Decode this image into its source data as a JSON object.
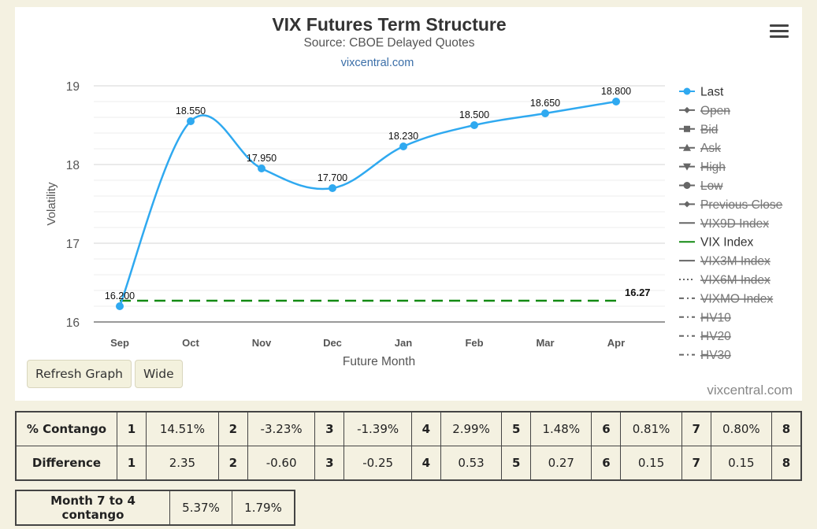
{
  "chart_data": {
    "type": "line",
    "title": "VIX Futures Term Structure",
    "subtitle": "Source: CBOE Delayed Quotes",
    "link_text": "vixcentral.com",
    "xlabel": "Future Month",
    "ylabel": "Volatility",
    "categories": [
      "Sep",
      "Oct",
      "Nov",
      "Dec",
      "Jan",
      "Feb",
      "Mar",
      "Apr"
    ],
    "ylim": [
      16,
      19
    ],
    "yticks": [
      16,
      17,
      18,
      19
    ],
    "grid": true,
    "legend_position": "right",
    "series": [
      {
        "name": "Last",
        "color": "#2fa9f0",
        "values": [
          16.2,
          18.55,
          17.95,
          17.7,
          18.23,
          18.5,
          18.65,
          18.8
        ],
        "labels": [
          "16.200",
          "18.550",
          "17.950",
          "17.700",
          "18.230",
          "18.500",
          "18.650",
          "18.800"
        ]
      },
      {
        "name": "VIX Index",
        "color": "#138a13",
        "values": [
          16.27,
          16.27,
          16.27,
          16.27,
          16.27,
          16.27,
          16.27,
          16.27
        ],
        "end_label": "16.27"
      }
    ],
    "legend": [
      {
        "name": "Last",
        "symbol": "circle-line",
        "active": true
      },
      {
        "name": "Open",
        "symbol": "diamond-line",
        "active": false
      },
      {
        "name": "Bid",
        "symbol": "square-line",
        "active": false
      },
      {
        "name": "Ask",
        "symbol": "triangle-line",
        "active": false
      },
      {
        "name": "High",
        "symbol": "triangle-down-line",
        "active": false
      },
      {
        "name": "Low",
        "symbol": "circle-line",
        "active": false
      },
      {
        "name": "Previous Close",
        "symbol": "diamond-line",
        "active": false
      },
      {
        "name": "VIX9D Index",
        "symbol": "solid",
        "active": false
      },
      {
        "name": "VIX Index",
        "symbol": "solid-green",
        "active": true
      },
      {
        "name": "VIX3M Index",
        "symbol": "solid",
        "active": false
      },
      {
        "name": "VIX6M Index",
        "symbol": "dotted",
        "active": false
      },
      {
        "name": "VIXMO Index",
        "symbol": "dashdot",
        "active": false
      },
      {
        "name": "HV10",
        "symbol": "dashdot",
        "active": false
      },
      {
        "name": "HV20",
        "symbol": "dashdot",
        "active": false
      },
      {
        "name": "HV30",
        "symbol": "dashdot",
        "active": false
      }
    ]
  },
  "toolbar": {
    "menu_icon": "hamburger-menu-icon",
    "refresh_label": "Refresh Graph",
    "wide_label": "Wide"
  },
  "credit": "vixcentral.com",
  "contango_table": {
    "rows": [
      {
        "label": "% Contango",
        "cells": [
          "1",
          "14.51%",
          "2",
          "-3.23%",
          "3",
          "-1.39%",
          "4",
          "2.99%",
          "5",
          "1.48%",
          "6",
          "0.81%",
          "7",
          "0.80%",
          "8"
        ]
      },
      {
        "label": "Difference",
        "cells": [
          "1",
          "2.35",
          "2",
          "-0.60",
          "3",
          "-0.25",
          "4",
          "0.53",
          "5",
          "0.27",
          "6",
          "0.15",
          "7",
          "0.15",
          "8"
        ]
      }
    ]
  },
  "month_7_to_4": {
    "label": "Month 7 to 4 contango",
    "values": [
      "5.37%",
      "1.79%"
    ]
  }
}
